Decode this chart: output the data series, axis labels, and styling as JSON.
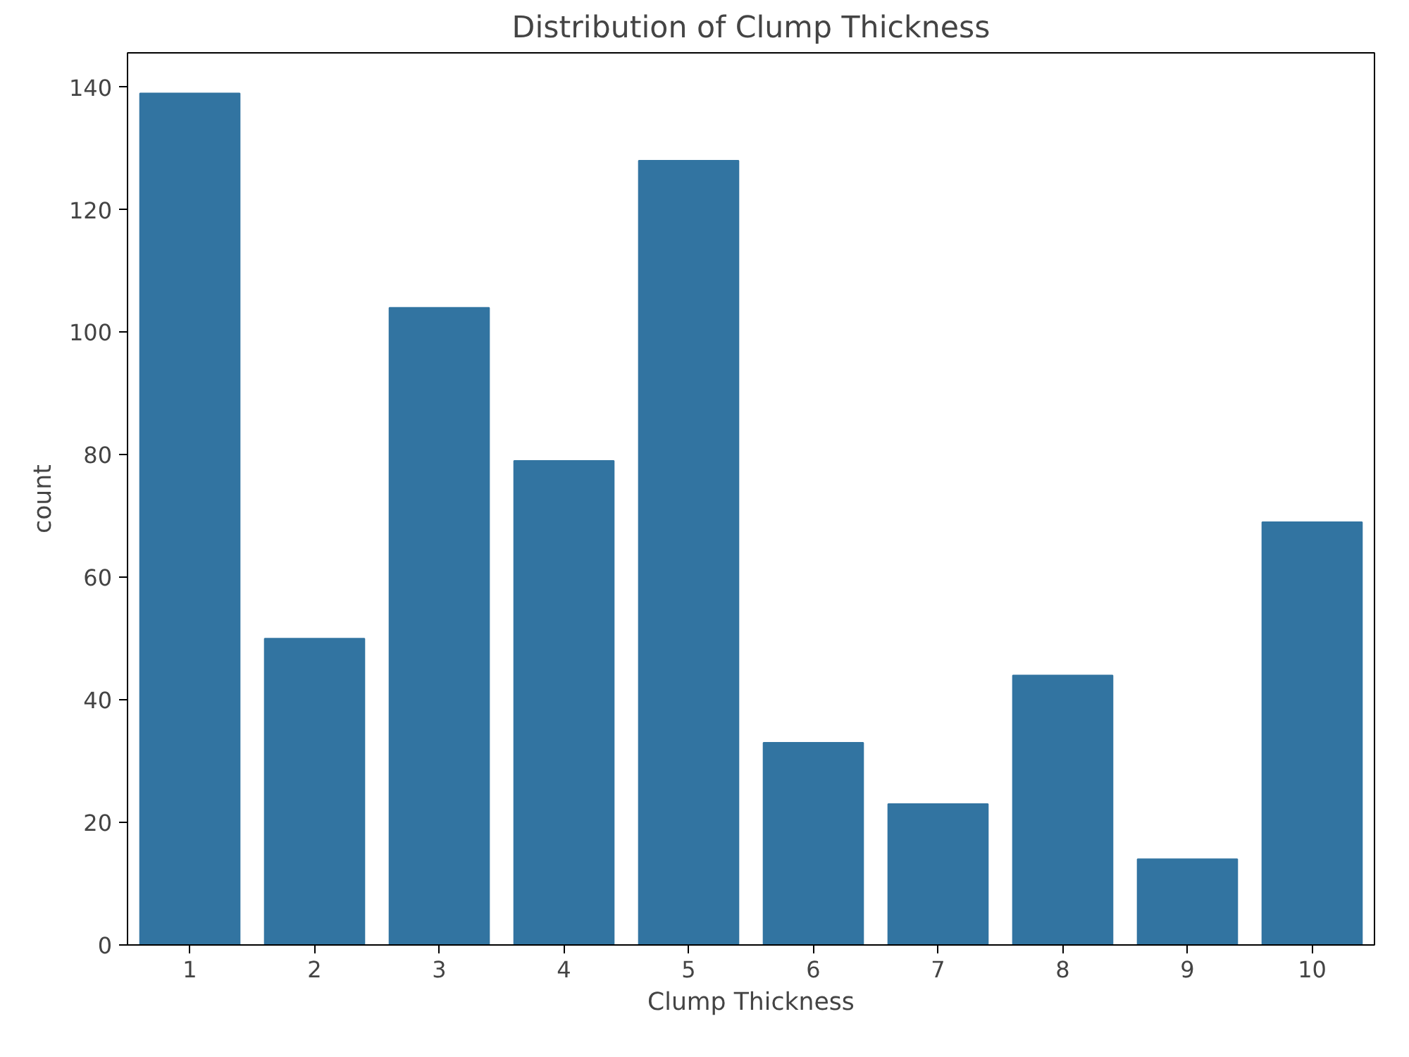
{
  "chart_data": {
    "type": "bar",
    "title": "Distribution of Clump Thickness",
    "xlabel": "Clump Thickness",
    "ylabel": "count",
    "categories": [
      "1",
      "2",
      "3",
      "4",
      "5",
      "6",
      "7",
      "8",
      "9",
      "10"
    ],
    "values": [
      139,
      50,
      104,
      79,
      128,
      33,
      23,
      44,
      14,
      69
    ],
    "color": "#3274a1",
    "ylim": [
      0,
      145.6
    ],
    "yticks": [
      0,
      20,
      40,
      60,
      80,
      100,
      120,
      140
    ],
    "grid": false
  }
}
